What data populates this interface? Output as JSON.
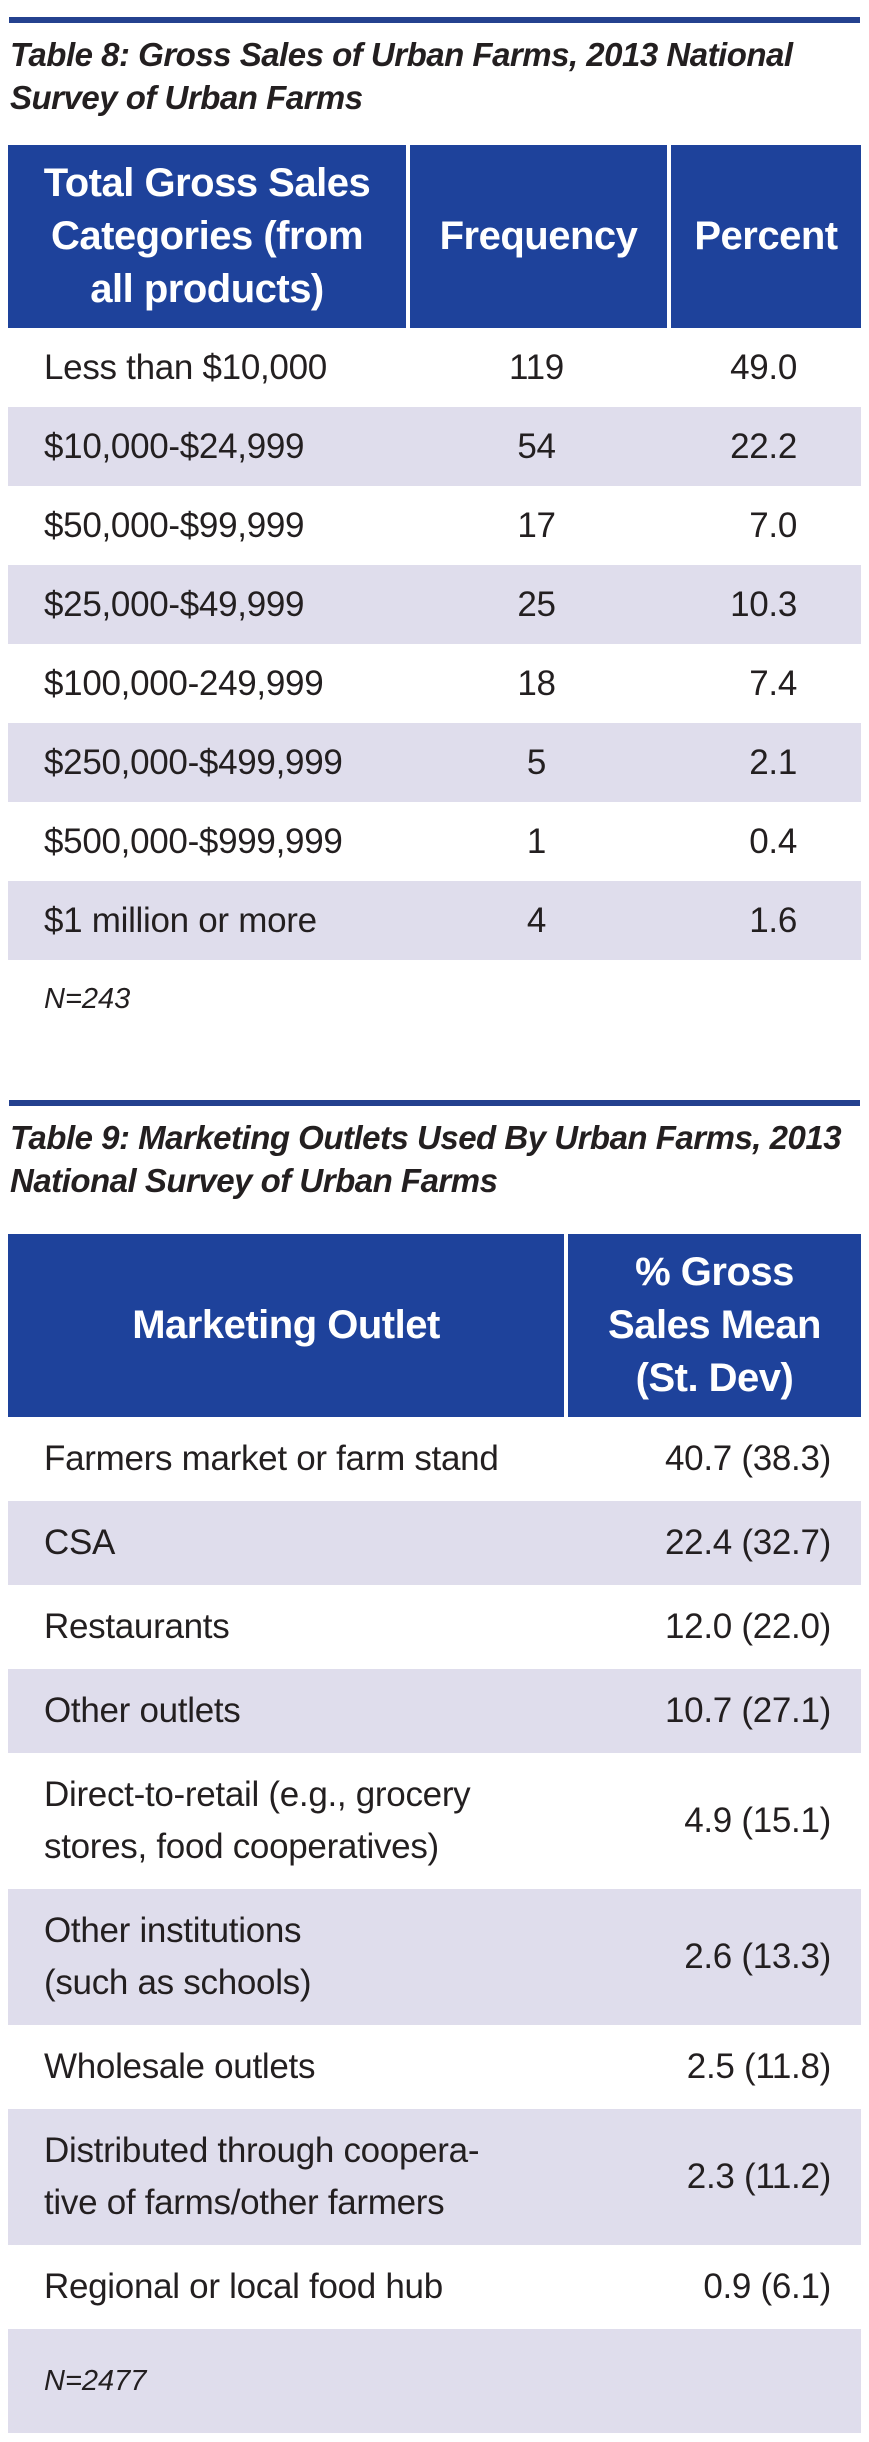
{
  "colors": {
    "header_blue": "#1e429b",
    "rule_blue": "#24418f",
    "row_stripe_lavender": "#dfddec",
    "text_ink": "#231f20"
  },
  "tables": [
    {
      "id": "table8",
      "title": "Table 8: Gross Sales of Urban Farms, 2013 National\nSurvey of Urban Farms",
      "columns": [
        "Total Gross Sales\nCategories (from\nall products)",
        "Frequency",
        "Percent"
      ],
      "rows": [
        [
          "Less than $10,000",
          "119",
          "49.0"
        ],
        [
          "$10,000-$24,999",
          "54",
          "22.2"
        ],
        [
          "$50,000-$99,999",
          "17",
          "7.0"
        ],
        [
          "$25,000-$49,999",
          "25",
          "10.3"
        ],
        [
          "$100,000-249,999",
          "18",
          "7.4"
        ],
        [
          "$250,000-$499,999",
          "5",
          "2.1"
        ],
        [
          "$500,000-$999,999",
          "1",
          "0.4"
        ],
        [
          "$1 million or more",
          "4",
          "1.6"
        ]
      ],
      "note": "N=243"
    },
    {
      "id": "table9",
      "title": "Table 9: Marketing Outlets Used By Urban Farms, 2013\nNational Survey of Urban Farms",
      "columns": [
        "Marketing Outlet",
        "% Gross\nSales Mean\n(St. Dev)"
      ],
      "rows": [
        [
          "Farmers market or farm stand",
          "40.7 (38.3)"
        ],
        [
          "CSA",
          "22.4 (32.7)"
        ],
        [
          "Restaurants",
          "12.0 (22.0)"
        ],
        [
          "Other outlets",
          "10.7 (27.1)"
        ],
        [
          "Direct-to-retail (e.g., grocery\nstores, food cooperatives)",
          "4.9 (15.1)"
        ],
        [
          "Other institutions\n(such as schools)",
          "2.6 (13.3)"
        ],
        [
          "Wholesale outlets",
          "2.5 (11.8)"
        ],
        [
          "Distributed through coopera-\ntive of farms/other farmers",
          "2.3 (11.2)"
        ],
        [
          "Regional or local food hub",
          "0.9 (6.1)"
        ]
      ],
      "note": "N=2477"
    }
  ]
}
